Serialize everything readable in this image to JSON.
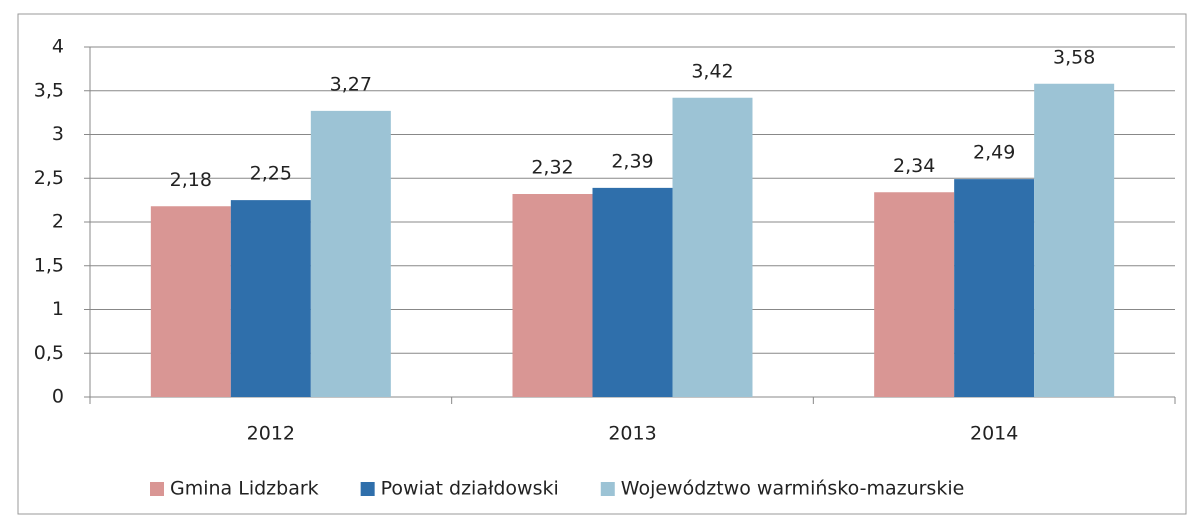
{
  "chart_data": {
    "type": "bar",
    "categories": [
      "2012",
      "2013",
      "2014"
    ],
    "series": [
      {
        "name": "Gmina Lidzbark",
        "color": "#d99694",
        "values": [
          2.18,
          2.32,
          2.34
        ],
        "value_labels": [
          "2,18",
          "2,32",
          "2,34"
        ]
      },
      {
        "name": "Powiat działdowski",
        "color": "#2f6fab",
        "values": [
          2.25,
          2.39,
          2.49
        ],
        "value_labels": [
          "2,25",
          "2,39",
          "2,49"
        ]
      },
      {
        "name": "Województwo warmińsko-mazurskie",
        "color": "#9cc3d5",
        "values": [
          3.27,
          3.42,
          3.58
        ],
        "value_labels": [
          "3,27",
          "3,42",
          "3,58"
        ]
      }
    ],
    "ylim": [
      0,
      4
    ],
    "yticks": [
      0,
      {
        "value": 0.5,
        "label": "0,5"
      },
      1,
      {
        "value": 1.5,
        "label": "1,5"
      },
      2,
      {
        "value": 2.5,
        "label": "2,5"
      },
      3,
      {
        "value": 3.5,
        "label": "3,5"
      },
      4
    ],
    "grid": true,
    "legend": "bottom"
  }
}
